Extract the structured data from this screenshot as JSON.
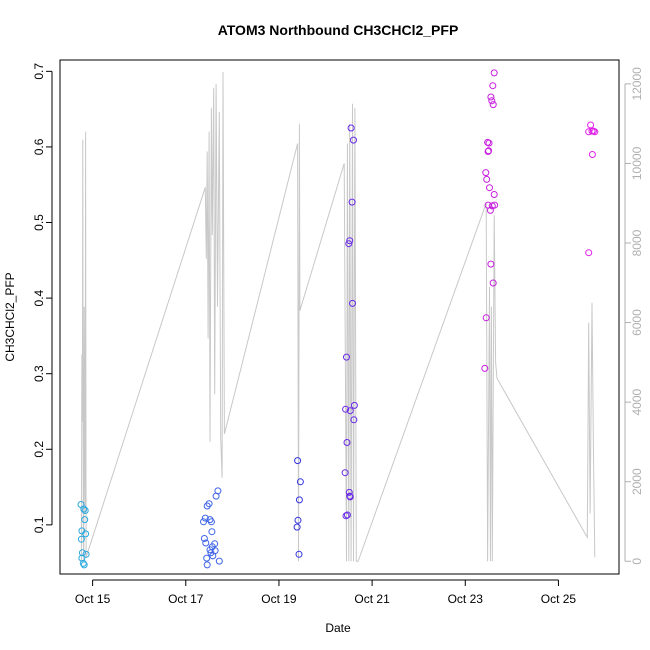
{
  "chart_data": {
    "type": "scatter",
    "title": "ATOM3 Northbound CH3CHCl2_PFP",
    "xlabel": "Date",
    "ylabel": "CH3CHCl2_PFP",
    "x_unit": "days (Oct)",
    "xlim": [
      14.3,
      26.3
    ],
    "ylim": [
      0.035,
      0.715
    ],
    "y2lim": [
      -320,
      12600
    ],
    "x_ticks": [
      {
        "value": 15,
        "label": "Oct 15"
      },
      {
        "value": 17,
        "label": "Oct 17"
      },
      {
        "value": 19,
        "label": "Oct 19"
      },
      {
        "value": 21,
        "label": "Oct 21"
      },
      {
        "value": 23,
        "label": "Oct 23"
      },
      {
        "value": 25,
        "label": "Oct 25"
      }
    ],
    "y_ticks": [
      {
        "value": 0.1,
        "label": "0.1"
      },
      {
        "value": 0.2,
        "label": "0.2"
      },
      {
        "value": 0.3,
        "label": "0.3"
      },
      {
        "value": 0.4,
        "label": "0.4"
      },
      {
        "value": 0.5,
        "label": "0.5"
      },
      {
        "value": 0.6,
        "label": "0.6"
      },
      {
        "value": 0.7,
        "label": "0.7"
      }
    ],
    "y2_ticks": [
      {
        "value": 0,
        "label": "0"
      },
      {
        "value": 2000,
        "label": "2000"
      },
      {
        "value": 4000,
        "label": "4000"
      },
      {
        "value": 6000,
        "label": "6000"
      },
      {
        "value": 8000,
        "label": "8000"
      },
      {
        "value": 10000,
        "label": "10000"
      },
      {
        "value": 12000,
        "label": "12000"
      }
    ],
    "colors": {
      "altitude_line": "#c8c8c8",
      "axis": "#000000",
      "right_axis": "#b0b0b0"
    },
    "altitude_series": [
      [
        14.76,
        0
      ],
      [
        14.77,
        5200
      ],
      [
        14.78,
        3500
      ],
      [
        14.79,
        10600
      ],
      [
        14.8,
        600
      ],
      [
        14.81,
        0
      ],
      [
        14.82,
        6400
      ],
      [
        14.83,
        2800
      ],
      [
        14.84,
        1200
      ],
      [
        14.85,
        10800
      ],
      [
        14.86,
        100
      ],
      [
        17.42,
        9400
      ],
      [
        17.44,
        7600
      ],
      [
        17.46,
        10300
      ],
      [
        17.48,
        5600
      ],
      [
        17.5,
        10800
      ],
      [
        17.52,
        3000
      ],
      [
        17.55,
        11400
      ],
      [
        17.57,
        8200
      ],
      [
        17.6,
        11900
      ],
      [
        17.62,
        4200
      ],
      [
        17.65,
        12000
      ],
      [
        17.68,
        6400
      ],
      [
        17.72,
        11300
      ],
      [
        17.75,
        3100
      ],
      [
        17.78,
        2100
      ],
      [
        17.8,
        12300
      ],
      [
        17.83,
        3200
      ],
      [
        19.4,
        10500
      ],
      [
        19.42,
        0
      ],
      [
        19.44,
        11000
      ],
      [
        19.45,
        6300
      ],
      [
        20.4,
        10000
      ],
      [
        20.45,
        0
      ],
      [
        20.47,
        10500
      ],
      [
        20.5,
        0
      ],
      [
        20.52,
        11000
      ],
      [
        20.55,
        0
      ],
      [
        20.58,
        11500
      ],
      [
        20.6,
        0
      ],
      [
        20.63,
        11400
      ],
      [
        20.66,
        0
      ],
      [
        20.7,
        0
      ],
      [
        23.45,
        9000
      ],
      [
        23.48,
        0
      ],
      [
        23.52,
        6900
      ],
      [
        23.54,
        0
      ],
      [
        23.56,
        6400
      ],
      [
        23.58,
        0
      ],
      [
        23.62,
        8700
      ],
      [
        23.65,
        5000
      ],
      [
        23.68,
        4600
      ],
      [
        25.62,
        600
      ],
      [
        25.65,
        6000
      ],
      [
        25.68,
        1200
      ],
      [
        25.72,
        6500
      ],
      [
        25.75,
        2900
      ],
      [
        25.78,
        100
      ]
    ],
    "points": [
      {
        "x": 14.75,
        "y": 0.127,
        "color": "#29a8e0"
      },
      {
        "x": 14.77,
        "y": 0.092,
        "color": "#29a8e0"
      },
      {
        "x": 14.76,
        "y": 0.081,
        "color": "#29a8e0"
      },
      {
        "x": 14.78,
        "y": 0.063,
        "color": "#29a8e0"
      },
      {
        "x": 14.77,
        "y": 0.056,
        "color": "#29a8e0"
      },
      {
        "x": 14.8,
        "y": 0.049,
        "color": "#29a8e0"
      },
      {
        "x": 14.82,
        "y": 0.047,
        "color": "#29a8e0"
      },
      {
        "x": 14.81,
        "y": 0.121,
        "color": "#29a8e0"
      },
      {
        "x": 14.84,
        "y": 0.119,
        "color": "#29a8e0"
      },
      {
        "x": 14.83,
        "y": 0.107,
        "color": "#29a8e0"
      },
      {
        "x": 14.85,
        "y": 0.088,
        "color": "#29a8e0"
      },
      {
        "x": 14.86,
        "y": 0.061,
        "color": "#29a8e0"
      },
      {
        "x": 17.38,
        "y": 0.104,
        "color": "#3f64e8"
      },
      {
        "x": 17.42,
        "y": 0.109,
        "color": "#3f64e8"
      },
      {
        "x": 17.4,
        "y": 0.082,
        "color": "#3f64e8"
      },
      {
        "x": 17.43,
        "y": 0.076,
        "color": "#3f64e8"
      },
      {
        "x": 17.46,
        "y": 0.125,
        "color": "#3f64e8"
      },
      {
        "x": 17.5,
        "y": 0.128,
        "color": "#3f64e8"
      },
      {
        "x": 17.52,
        "y": 0.107,
        "color": "#3f64e8"
      },
      {
        "x": 17.55,
        "y": 0.104,
        "color": "#3f64e8"
      },
      {
        "x": 17.56,
        "y": 0.091,
        "color": "#3f64e8"
      },
      {
        "x": 17.45,
        "y": 0.056,
        "color": "#3f64e8"
      },
      {
        "x": 17.46,
        "y": 0.047,
        "color": "#3f64e8"
      },
      {
        "x": 17.52,
        "y": 0.067,
        "color": "#3f64e8"
      },
      {
        "x": 17.54,
        "y": 0.063,
        "color": "#3f64e8"
      },
      {
        "x": 17.57,
        "y": 0.071,
        "color": "#3f64e8"
      },
      {
        "x": 17.58,
        "y": 0.059,
        "color": "#3f64e8"
      },
      {
        "x": 17.62,
        "y": 0.075,
        "color": "#3f64e8"
      },
      {
        "x": 17.63,
        "y": 0.066,
        "color": "#3f64e8"
      },
      {
        "x": 17.65,
        "y": 0.138,
        "color": "#3f64e8"
      },
      {
        "x": 17.69,
        "y": 0.145,
        "color": "#3f64e8"
      },
      {
        "x": 17.72,
        "y": 0.052,
        "color": "#3f64e8"
      },
      {
        "x": 19.4,
        "y": 0.185,
        "color": "#3333e0"
      },
      {
        "x": 19.46,
        "y": 0.157,
        "color": "#3333e0"
      },
      {
        "x": 19.44,
        "y": 0.133,
        "color": "#3333e0"
      },
      {
        "x": 19.41,
        "y": 0.106,
        "color": "#3333e0"
      },
      {
        "x": 19.39,
        "y": 0.097,
        "color": "#3333e0"
      },
      {
        "x": 19.43,
        "y": 0.061,
        "color": "#3333e0"
      },
      {
        "x": 20.45,
        "y": 0.322,
        "color": "#6a2ae8"
      },
      {
        "x": 20.43,
        "y": 0.253,
        "color": "#6a2ae8"
      },
      {
        "x": 20.42,
        "y": 0.169,
        "color": "#6a2ae8"
      },
      {
        "x": 20.46,
        "y": 0.209,
        "color": "#6a2ae8"
      },
      {
        "x": 20.44,
        "y": 0.112,
        "color": "#6a2ae8"
      },
      {
        "x": 20.47,
        "y": 0.113,
        "color": "#6a2ae8"
      },
      {
        "x": 20.5,
        "y": 0.472,
        "color": "#6a2ae8"
      },
      {
        "x": 20.52,
        "y": 0.476,
        "color": "#6a2ae8"
      },
      {
        "x": 20.51,
        "y": 0.143,
        "color": "#6a2ae8"
      },
      {
        "x": 20.52,
        "y": 0.138,
        "color": "#6a2ae8"
      },
      {
        "x": 20.53,
        "y": 0.137,
        "color": "#6a2ae8"
      },
      {
        "x": 20.55,
        "y": 0.625,
        "color": "#6a2ae8"
      },
      {
        "x": 20.6,
        "y": 0.609,
        "color": "#6a2ae8"
      },
      {
        "x": 20.57,
        "y": 0.527,
        "color": "#6a2ae8"
      },
      {
        "x": 20.58,
        "y": 0.393,
        "color": "#6a2ae8"
      },
      {
        "x": 20.53,
        "y": 0.251,
        "color": "#6a2ae8"
      },
      {
        "x": 20.62,
        "y": 0.258,
        "color": "#6a2ae8"
      },
      {
        "x": 20.61,
        "y": 0.239,
        "color": "#6a2ae8"
      },
      {
        "x": 23.42,
        "y": 0.307,
        "color": "#c81ee0"
      },
      {
        "x": 23.45,
        "y": 0.374,
        "color": "#c81ee0"
      },
      {
        "x": 23.44,
        "y": 0.566,
        "color": "#c81ee0"
      },
      {
        "x": 23.46,
        "y": 0.557,
        "color": "#c81ee0"
      },
      {
        "x": 23.48,
        "y": 0.606,
        "color": "#c81ee0"
      },
      {
        "x": 23.5,
        "y": 0.595,
        "color": "#c81ee0"
      },
      {
        "x": 23.51,
        "y": 0.605,
        "color": "#c81ee0"
      },
      {
        "x": 23.49,
        "y": 0.594,
        "color": "#c81ee0"
      },
      {
        "x": 23.52,
        "y": 0.546,
        "color": "#c81ee0"
      },
      {
        "x": 23.49,
        "y": 0.523,
        "color": "#c81ee0"
      },
      {
        "x": 23.54,
        "y": 0.516,
        "color": "#c81ee0"
      },
      {
        "x": 23.58,
        "y": 0.522,
        "color": "#c81ee0"
      },
      {
        "x": 23.62,
        "y": 0.537,
        "color": "#c81ee0"
      },
      {
        "x": 23.63,
        "y": 0.523,
        "color": "#c81ee0"
      },
      {
        "x": 23.55,
        "y": 0.666,
        "color": "#c81ee0"
      },
      {
        "x": 23.57,
        "y": 0.661,
        "color": "#c81ee0"
      },
      {
        "x": 23.6,
        "y": 0.656,
        "color": "#c81ee0"
      },
      {
        "x": 23.59,
        "y": 0.681,
        "color": "#c81ee0"
      },
      {
        "x": 23.62,
        "y": 0.698,
        "color": "#c81ee0"
      },
      {
        "x": 23.55,
        "y": 0.445,
        "color": "#c81ee0"
      },
      {
        "x": 23.6,
        "y": 0.42,
        "color": "#c81ee0"
      },
      {
        "x": 25.65,
        "y": 0.46,
        "color": "#e020e8"
      },
      {
        "x": 25.65,
        "y": 0.62,
        "color": "#e020e8"
      },
      {
        "x": 25.69,
        "y": 0.629,
        "color": "#e020e8"
      },
      {
        "x": 25.72,
        "y": 0.621,
        "color": "#e020e8"
      },
      {
        "x": 25.75,
        "y": 0.621,
        "color": "#e020e8"
      },
      {
        "x": 25.78,
        "y": 0.62,
        "color": "#e020e8"
      },
      {
        "x": 25.73,
        "y": 0.59,
        "color": "#e020e8"
      }
    ]
  }
}
